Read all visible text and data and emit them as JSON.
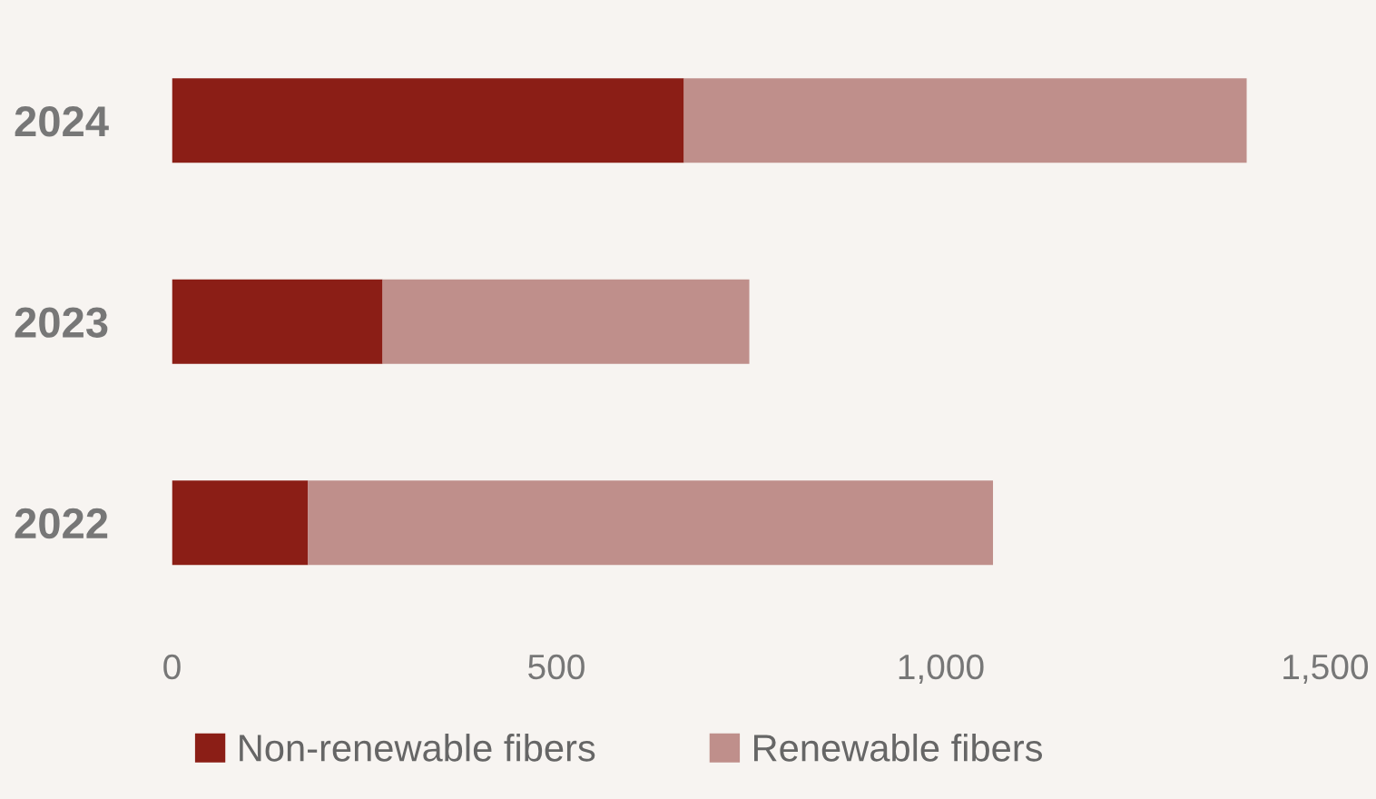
{
  "chart_data": {
    "type": "bar",
    "orientation": "horizontal",
    "stacked": true,
    "categories": [
      "2024",
      "2023",
      "2022"
    ],
    "series": [
      {
        "name": "Non-renewable fibers",
        "color": "#8b1e16",
        "values": [
          666,
          274,
          177
        ]
      },
      {
        "name": "Renewable fibers",
        "color": "#bf8f8b",
        "values": [
          732,
          477,
          891
        ]
      }
    ],
    "xlim": [
      0,
      1500
    ],
    "xticks": [
      0,
      500,
      {
        "value": 1000,
        "label": "1,000"
      },
      {
        "value": 1500,
        "label": "1,500"
      }
    ],
    "grid": false,
    "legend": "bottom"
  }
}
